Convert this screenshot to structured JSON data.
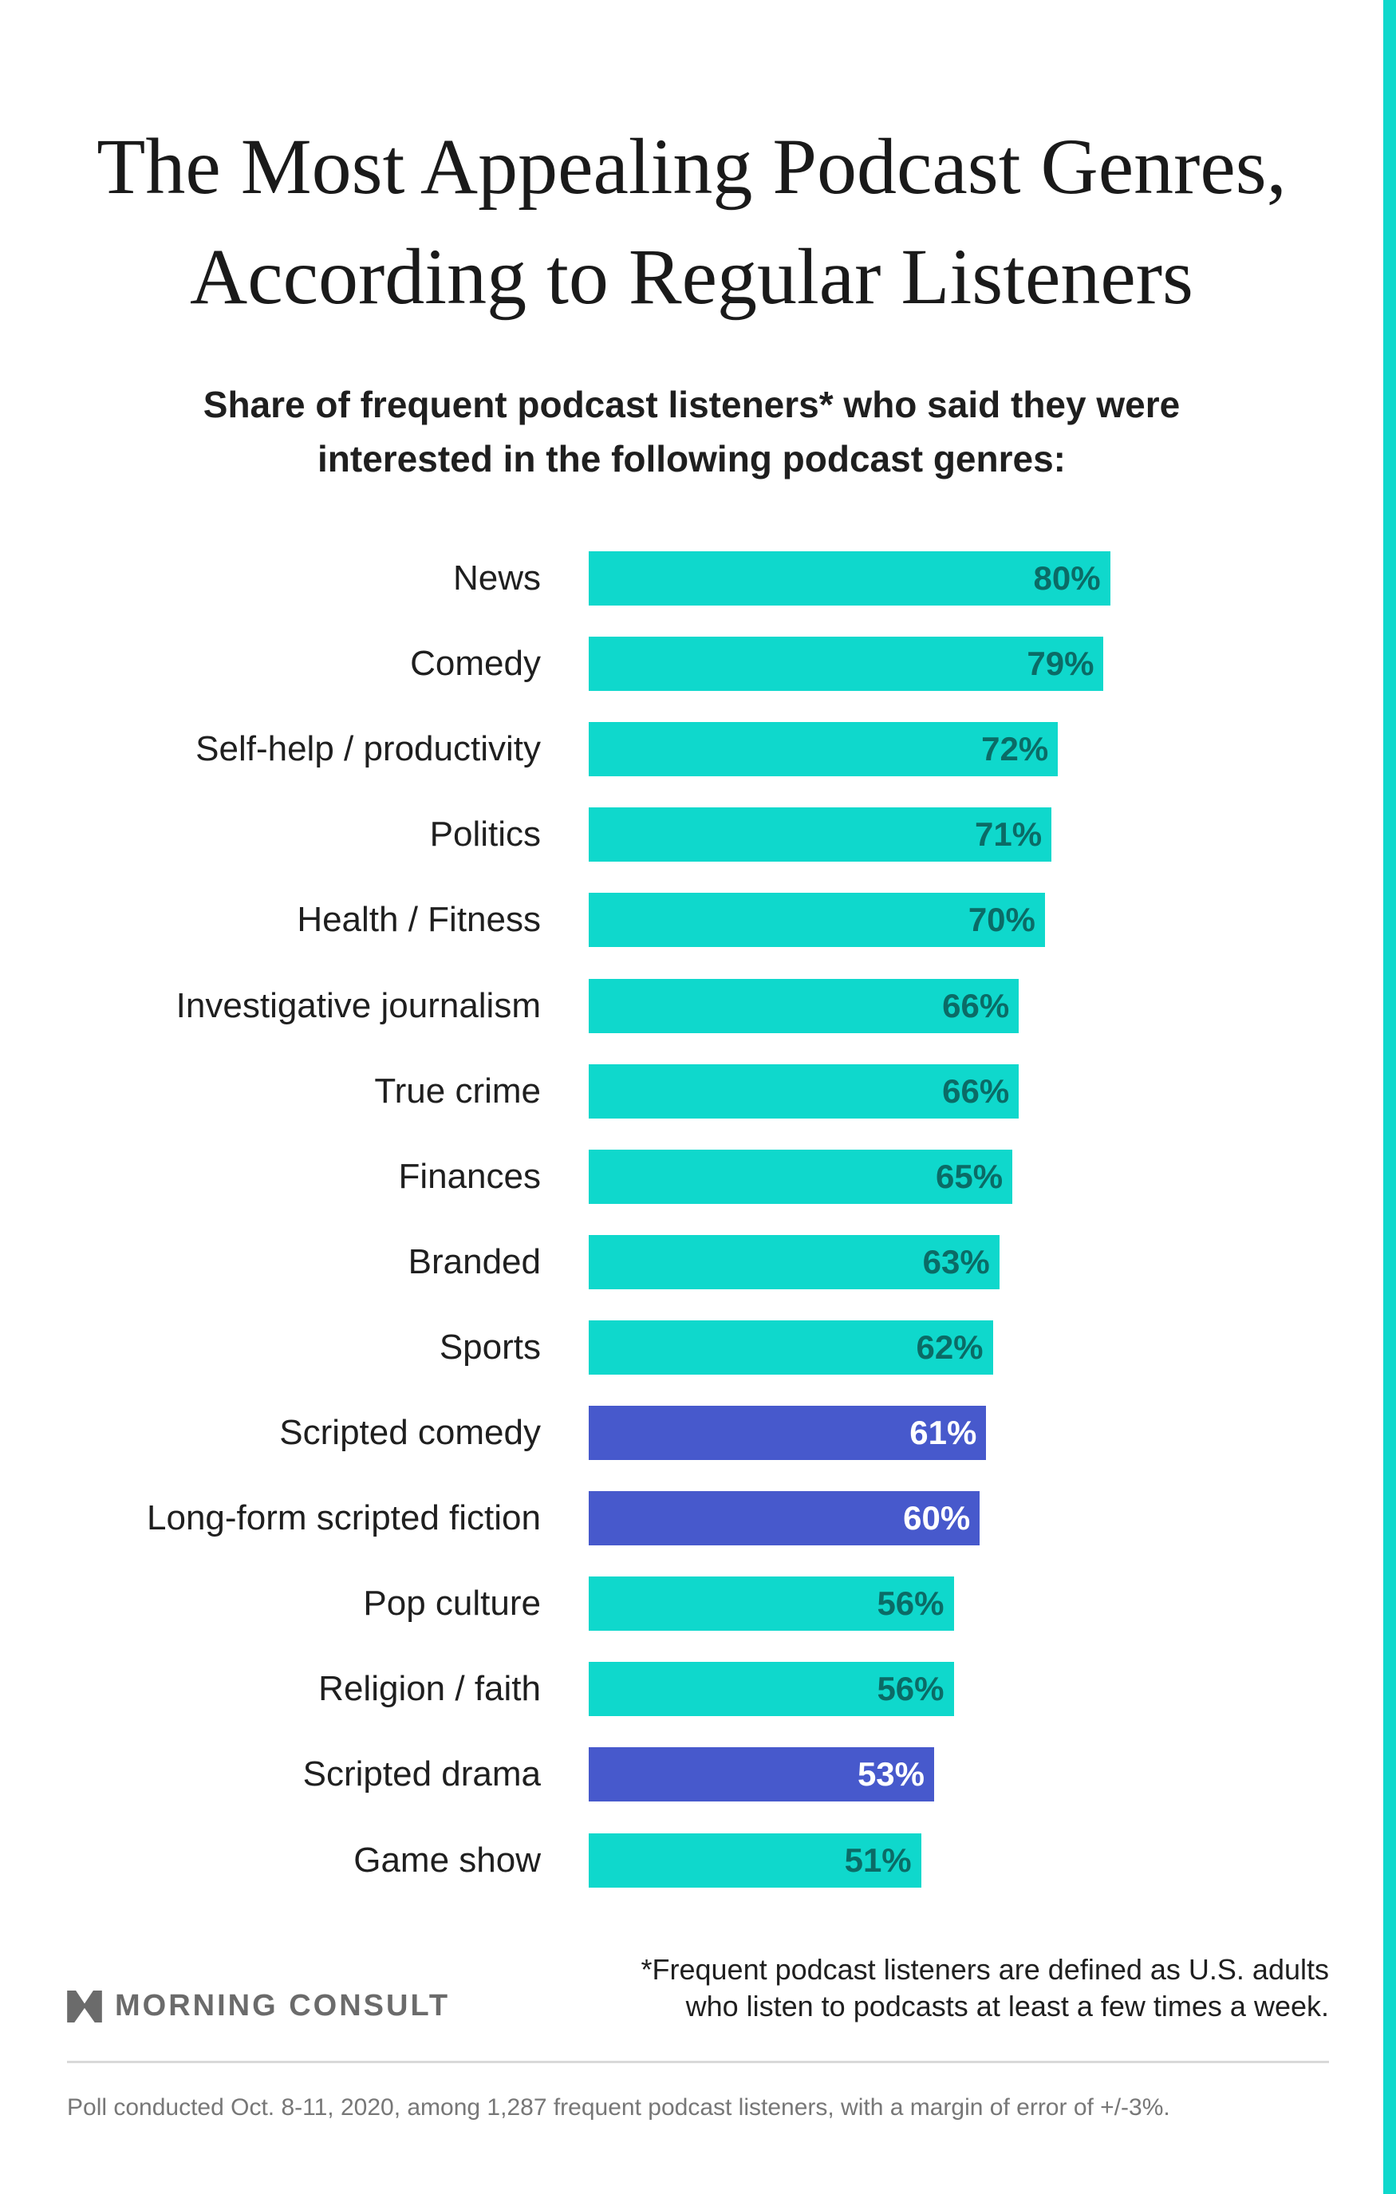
{
  "title_lines": [
    "The Most Appealing Podcast Genres,",
    "According to Regular Listeners"
  ],
  "subtitle_lines": [
    "Share of frequent podcast listeners* who said they were",
    "interested in the following podcast genres:"
  ],
  "colors": {
    "audio_genre": "#0fd8cc",
    "scripted_genre": "#4759cc",
    "label_on_teal": "#0b6b66",
    "label_on_purple": "#ffffff",
    "accent_rail": "#0fd8cc"
  },
  "chart_data": {
    "type": "bar",
    "orientation": "horizontal",
    "title": "The Most Appealing Podcast Genres, According to Regular Listeners",
    "subtitle": "Share of frequent podcast listeners* who said they were interested in the following podcast genres:",
    "categories": [
      "News",
      "Comedy",
      "Self-help / productivity",
      "Politics",
      "Health / Fitness",
      "Investigative journalism",
      "True crime",
      "Finances",
      "Branded",
      "Sports",
      "Scripted comedy",
      "Long-form scripted fiction",
      "Pop culture",
      "Religion / faith",
      "Scripted drama",
      "Game show"
    ],
    "values": [
      80,
      79,
      72,
      71,
      70,
      66,
      66,
      65,
      63,
      62,
      61,
      60,
      56,
      56,
      53,
      51
    ],
    "value_labels": [
      "80%",
      "79%",
      "72%",
      "71%",
      "70%",
      "66%",
      "66%",
      "65%",
      "63%",
      "62%",
      "61%",
      "60%",
      "56%",
      "56%",
      "53%",
      "51%"
    ],
    "highlighted": [
      false,
      false,
      false,
      false,
      false,
      false,
      false,
      false,
      false,
      false,
      true,
      true,
      false,
      false,
      true,
      false
    ],
    "unit": "%",
    "xlim": [
      0,
      100
    ],
    "grid": false,
    "axes_visible": false
  },
  "footer": {
    "logo_text": "MORNING CONSULT",
    "note_lines": [
      "*Frequent podcast listeners are defined as U.S. adults",
      "who listen to podcasts at least a few times a week."
    ],
    "poll": "Poll conducted Oct. 8-11, 2020, among 1,287 frequent podcast listeners, with a margin of error of +/-3%."
  }
}
